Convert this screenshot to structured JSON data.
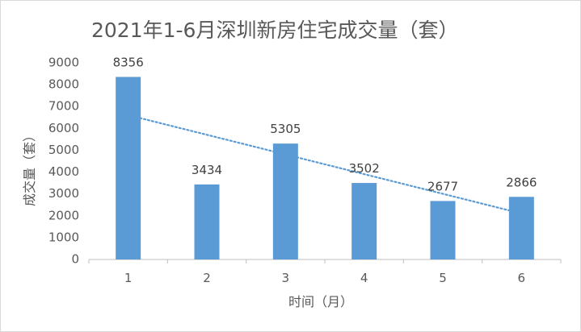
{
  "chart_data": {
    "type": "bar",
    "title": "2021年1-6月深圳新房住宅成交量（套）",
    "xlabel": "时间（月）",
    "ylabel": "成交量（套）",
    "categories": [
      "1",
      "2",
      "3",
      "4",
      "5",
      "6"
    ],
    "values": [
      8356,
      3434,
      5305,
      3502,
      2677,
      2866
    ],
    "ylim": [
      0,
      9000
    ],
    "yticks": [
      "0",
      "1000",
      "2000",
      "3000",
      "4000",
      "5000",
      "6000",
      "7000",
      "8000",
      "9000"
    ],
    "grid": false,
    "trendline": {
      "type": "linear",
      "style": "dotted"
    },
    "colors": {
      "bar": "#5b9bd5",
      "trendline": "#5b9bd5",
      "axis": "#bfbfbf"
    }
  }
}
